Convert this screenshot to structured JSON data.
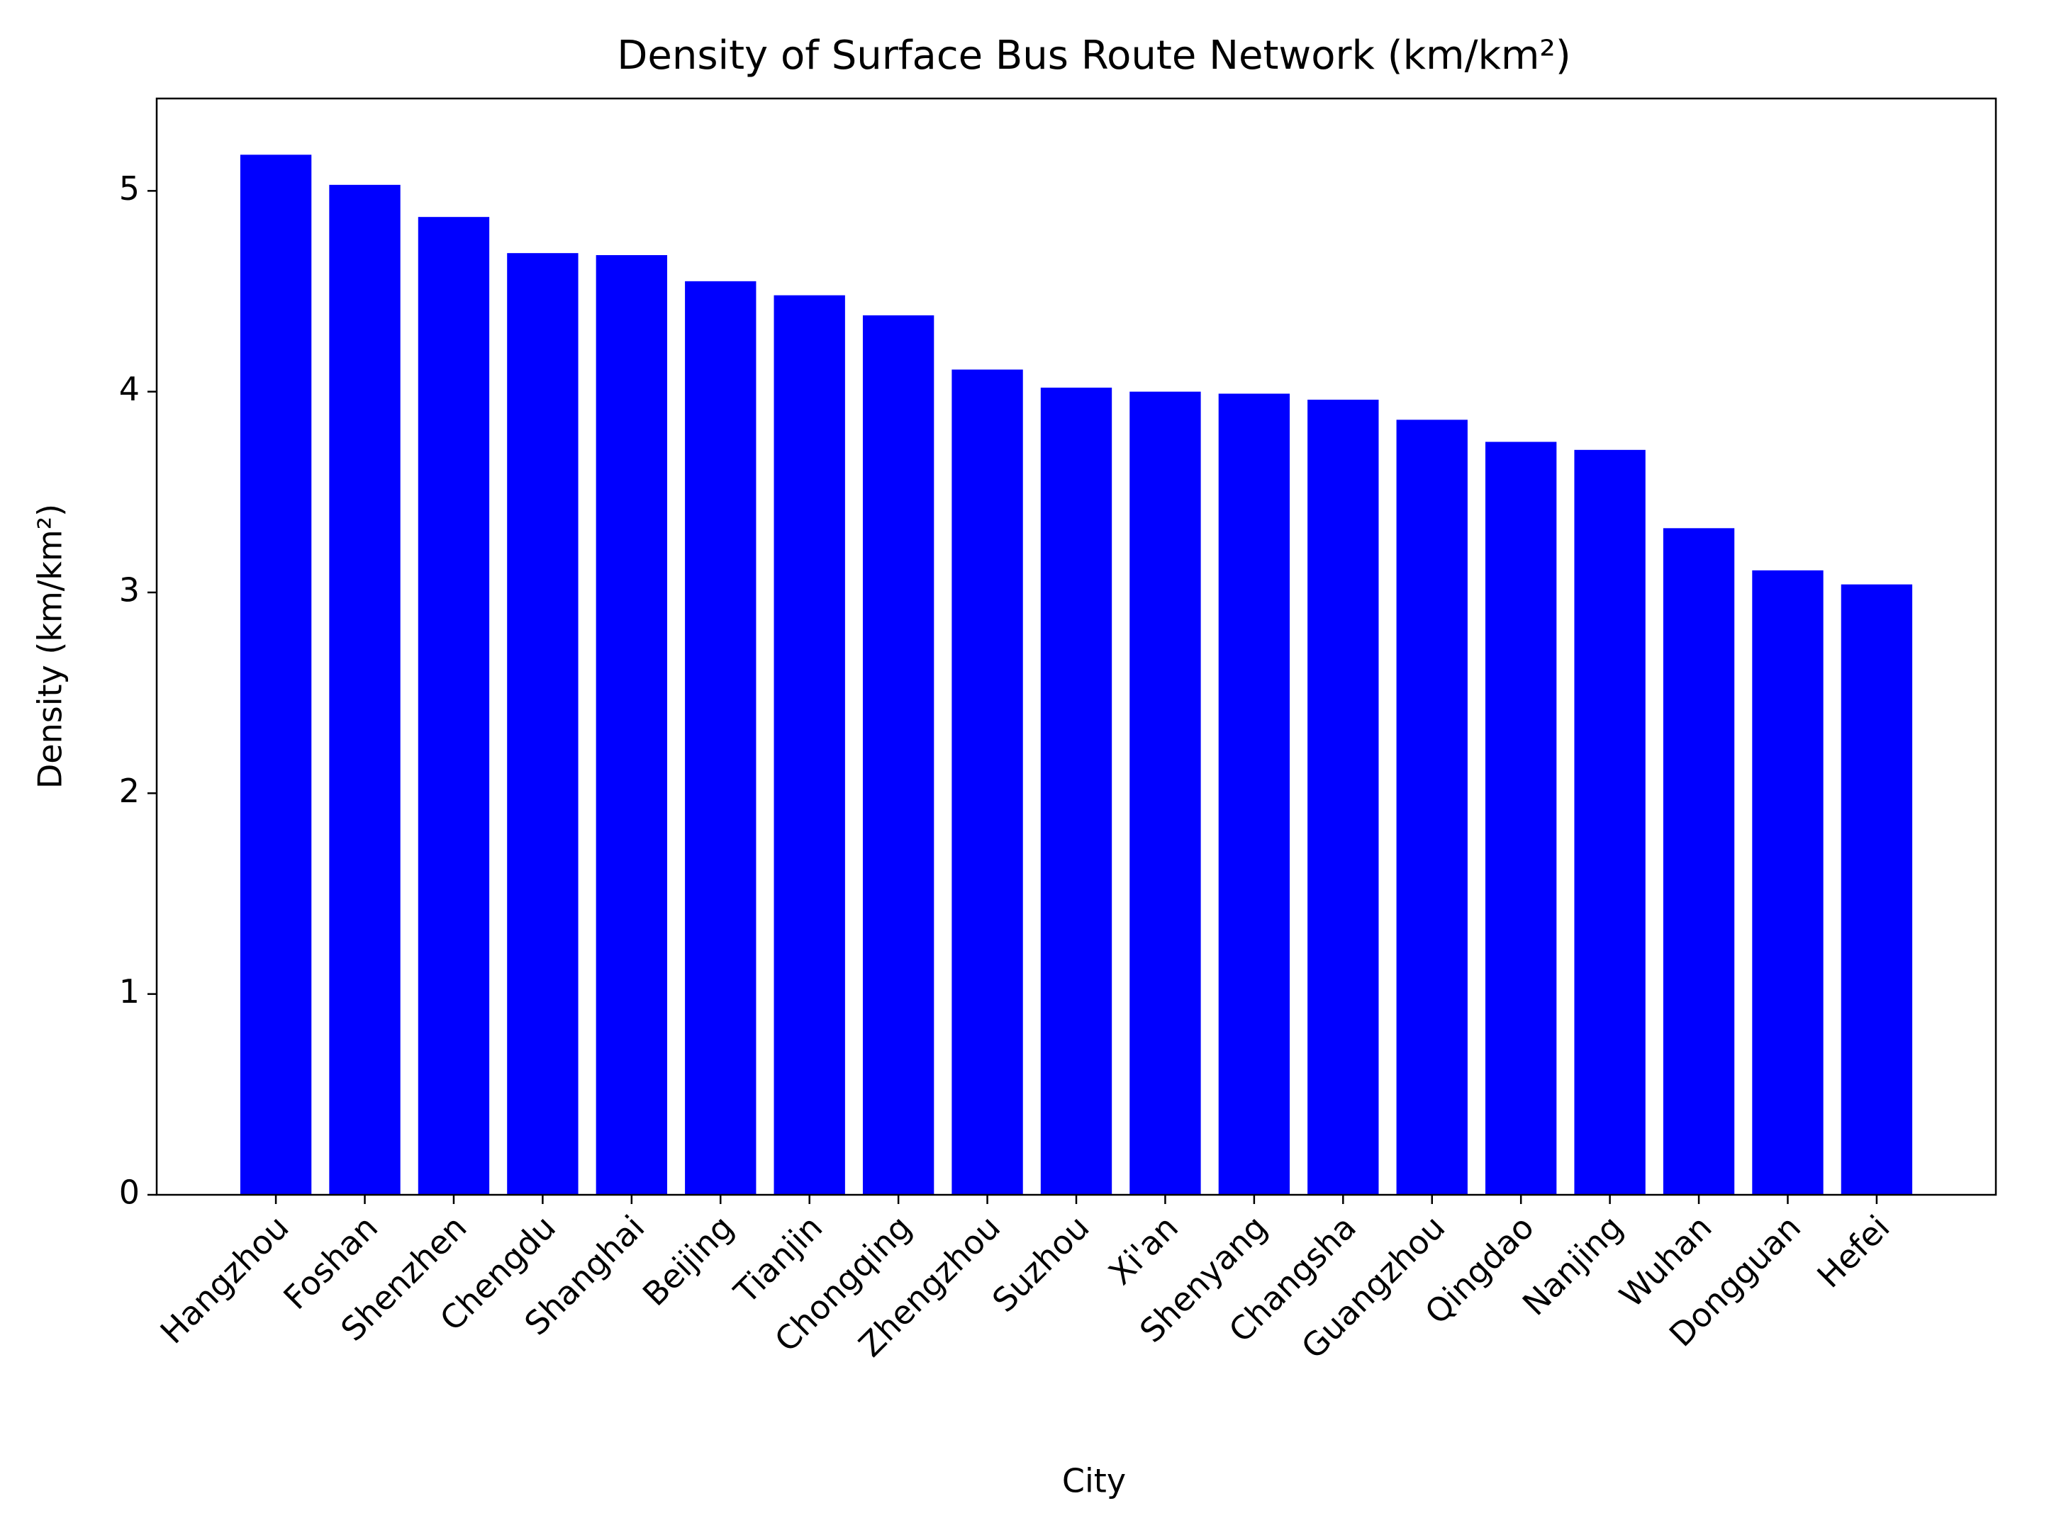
{
  "chart_data": {
    "type": "bar",
    "title": "Density of Surface Bus Route Network (km/km²)",
    "x_label": "City",
    "y_label": "Density (km/km²)",
    "categories": [
      "Hangzhou",
      "Foshan",
      "Shenzhen",
      "Chengdu",
      "Shanghai",
      "Beijing",
      "Tianjin",
      "Chongqing",
      "Zhengzhou",
      "Suzhou",
      "Xi'an",
      "Shenyang",
      "Changsha",
      "Guangzhou",
      "Qingdao",
      "Nanjing",
      "Wuhan",
      "Dongguan",
      "Hefei"
    ],
    "values": [
      5.18,
      5.03,
      4.87,
      4.69,
      4.68,
      4.55,
      4.48,
      4.38,
      4.11,
      4.02,
      4.0,
      3.99,
      3.96,
      3.86,
      3.75,
      3.71,
      3.32,
      3.11,
      3.04
    ],
    "color": "#0000ff",
    "ylim": [
      0,
      5.46
    ],
    "yticks": [
      0,
      1,
      2,
      3,
      4,
      5
    ],
    "grid": false
  }
}
